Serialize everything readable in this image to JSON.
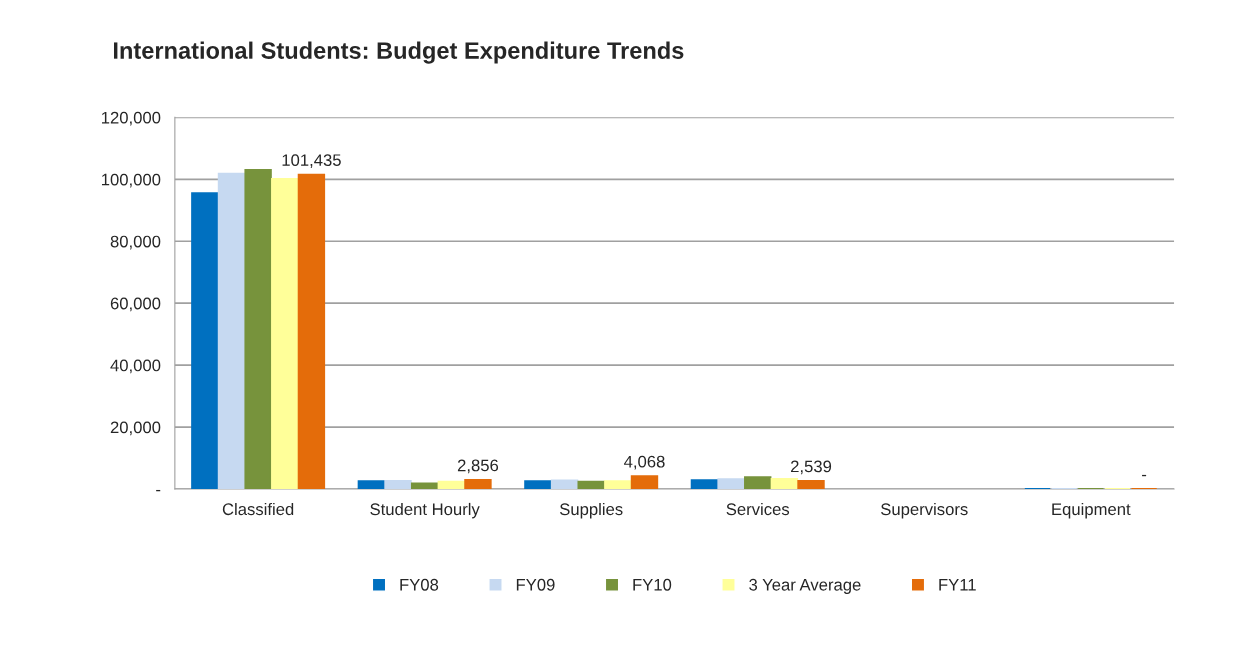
{
  "chart_data": {
    "type": "bar",
    "title": "International Students: Budget Expenditure Trends",
    "categories": [
      "Classified",
      "Student Hourly",
      "Supplies",
      "Services",
      "Supervisors",
      "Equipment"
    ],
    "series": [
      {
        "name": "FY08",
        "color": "#0070c0",
        "values": [
          95500,
          2500,
          2500,
          2800,
          null,
          0
        ]
      },
      {
        "name": "FY09",
        "color": "#c6d9f1",
        "values": [
          101800,
          2600,
          2700,
          3100,
          null,
          0
        ]
      },
      {
        "name": "FY10",
        "color": "#77933c",
        "values": [
          103000,
          1800,
          2300,
          3800,
          null,
          0
        ]
      },
      {
        "name": "3 Year Average",
        "color": "#ffff99",
        "values": [
          100100,
          2300,
          2500,
          3200,
          null,
          0
        ]
      },
      {
        "name": "FY11",
        "color": "#e46c0a",
        "values": [
          101435,
          2856,
          4068,
          2539,
          null,
          0
        ],
        "value_labels": [
          "101,435",
          "2,856",
          "4,068",
          "2,539",
          null,
          "-"
        ]
      }
    ],
    "ylim": [
      0,
      120000
    ],
    "yticks": [
      {
        "value": 0,
        "label": "-"
      },
      {
        "value": 20000,
        "label": "20,000"
      },
      {
        "value": 40000,
        "label": "40,000"
      },
      {
        "value": 60000,
        "label": "60,000"
      },
      {
        "value": 80000,
        "label": "80,000"
      },
      {
        "value": 100000,
        "label": "100,000"
      },
      {
        "value": 120000,
        "label": "120,000"
      }
    ],
    "grid": "y",
    "legend": "bottom"
  }
}
